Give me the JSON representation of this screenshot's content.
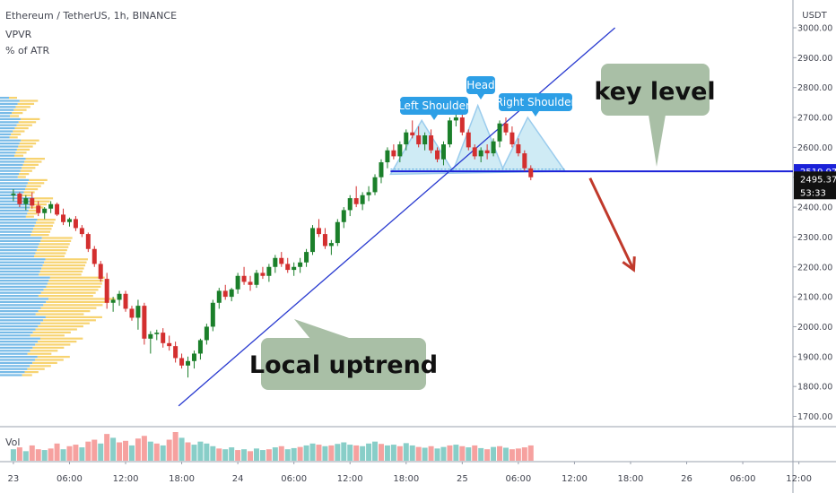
{
  "header": {
    "symbol": "Ethereum / TetherUS, 1h, BINANCE",
    "indicator_1": "VPVR",
    "indicator_2": "% of ATR"
  },
  "price_axis": {
    "currency": "USDT",
    "key_level_label": "2519.97",
    "last_price_label": "2495.37",
    "countdown_label": "53:33"
  },
  "volume_pane": {
    "label": "Vol"
  },
  "annotations": {
    "left_shoulder": "Left Shoulder",
    "head": "Head",
    "right_shoulder": "Right Shoulder",
    "key_level": "key level",
    "local_uptrend": "Local uptrend"
  },
  "colors": {
    "up": "#26a69a",
    "down": "#ef5350",
    "up_candle": "#1b7f2a",
    "down_candle": "#d32f2f",
    "key_level_line": "#1a21d8",
    "trendline": "#2a3bd0",
    "pattern_fill": "#a8dced",
    "pattern_stroke": "#4aa3df",
    "callout_green": "#a9bfa6",
    "callout_blue": "#2d9fe6",
    "arrow_red": "#c0392b",
    "vpvr_blue": "#4aa3df",
    "vpvr_yellow": "#f5c84c"
  },
  "chart_data": {
    "type": "candlestick",
    "ylim": [
      1660,
      3040
    ],
    "y_ticks": [
      1700,
      1800,
      1900,
      2000,
      2100,
      2200,
      2300,
      2400,
      2500,
      2600,
      2700,
      2800,
      2900,
      3000
    ],
    "y_tick_labels": [
      "1700.00",
      "1800.00",
      "1900.00",
      "2000.00",
      "2100.00",
      "2200.00",
      "2300.00",
      "2400.00",
      "2500.00",
      "2600.00",
      "2700.00",
      "2800.00",
      "2900.00",
      "3000.00"
    ],
    "x_tick_labels": [
      "23",
      "06:00",
      "12:00",
      "18:00",
      "24",
      "06:00",
      "12:00",
      "18:00",
      "25",
      "06:00",
      "12:00",
      "18:00",
      "26",
      "06:00",
      "12:00"
    ],
    "x_tick_bars": [
      0,
      9,
      18,
      27,
      36,
      45,
      54,
      63,
      72,
      81,
      90,
      99,
      108,
      117,
      126
    ],
    "key_level": 2519.97,
    "last_price": 2495.37,
    "head_and_shoulders": {
      "left_shoulder_peak": 2690,
      "head_peak": 2740,
      "right_shoulder_peak": 2700,
      "neckline": 2520
    },
    "trendline": {
      "from": [
        28,
        1735
      ],
      "to": [
        98,
        3000
      ]
    },
    "target_arrow": {
      "from": [
        94,
        2497
      ],
      "to": [
        101,
        2190
      ]
    },
    "candles": [
      [
        2440,
        2460,
        2420,
        2445
      ],
      [
        2445,
        2450,
        2400,
        2410
      ],
      [
        2410,
        2440,
        2390,
        2430
      ],
      [
        2430,
        2450,
        2395,
        2405
      ],
      [
        2405,
        2420,
        2370,
        2380
      ],
      [
        2380,
        2400,
        2360,
        2395
      ],
      [
        2395,
        2420,
        2380,
        2410
      ],
      [
        2410,
        2415,
        2370,
        2375
      ],
      [
        2375,
        2395,
        2340,
        2350
      ],
      [
        2350,
        2365,
        2335,
        2360
      ],
      [
        2360,
        2370,
        2320,
        2330
      ],
      [
        2330,
        2340,
        2300,
        2310
      ],
      [
        2310,
        2315,
        2250,
        2260
      ],
      [
        2260,
        2270,
        2200,
        2210
      ],
      [
        2210,
        2220,
        2150,
        2160
      ],
      [
        2160,
        2180,
        2060,
        2080
      ],
      [
        2080,
        2100,
        2050,
        2090
      ],
      [
        2090,
        2120,
        2070,
        2110
      ],
      [
        2110,
        2120,
        2050,
        2060
      ],
      [
        2060,
        2070,
        2020,
        2030
      ],
      [
        2030,
        2090,
        1990,
        2070
      ],
      [
        2070,
        2080,
        1940,
        1960
      ],
      [
        1960,
        1985,
        1910,
        1975
      ],
      [
        1975,
        1990,
        1955,
        1980
      ],
      [
        1980,
        1995,
        1930,
        1945
      ],
      [
        1945,
        1970,
        1920,
        1935
      ],
      [
        1935,
        1950,
        1880,
        1895
      ],
      [
        1895,
        1910,
        1860,
        1870
      ],
      [
        1870,
        1900,
        1830,
        1885
      ],
      [
        1885,
        1920,
        1860,
        1910
      ],
      [
        1910,
        1960,
        1890,
        1955
      ],
      [
        1955,
        2010,
        1940,
        2000
      ],
      [
        2000,
        2090,
        1985,
        2080
      ],
      [
        2080,
        2130,
        2060,
        2120
      ],
      [
        2120,
        2140,
        2090,
        2100
      ],
      [
        2100,
        2130,
        2085,
        2125
      ],
      [
        2125,
        2180,
        2110,
        2170
      ],
      [
        2170,
        2200,
        2140,
        2150
      ],
      [
        2150,
        2170,
        2120,
        2140
      ],
      [
        2140,
        2190,
        2130,
        2180
      ],
      [
        2180,
        2200,
        2160,
        2170
      ],
      [
        2170,
        2210,
        2150,
        2200
      ],
      [
        2200,
        2240,
        2180,
        2230
      ],
      [
        2230,
        2250,
        2200,
        2210
      ],
      [
        2210,
        2230,
        2180,
        2190
      ],
      [
        2190,
        2215,
        2170,
        2200
      ],
      [
        2200,
        2230,
        2180,
        2215
      ],
      [
        2215,
        2260,
        2200,
        2250
      ],
      [
        2250,
        2340,
        2240,
        2330
      ],
      [
        2330,
        2360,
        2300,
        2310
      ],
      [
        2310,
        2330,
        2260,
        2270
      ],
      [
        2270,
        2290,
        2240,
        2280
      ],
      [
        2280,
        2360,
        2270,
        2350
      ],
      [
        2350,
        2400,
        2330,
        2390
      ],
      [
        2390,
        2440,
        2370,
        2430
      ],
      [
        2430,
        2470,
        2400,
        2410
      ],
      [
        2410,
        2450,
        2390,
        2440
      ],
      [
        2440,
        2470,
        2420,
        2450
      ],
      [
        2450,
        2510,
        2440,
        2500
      ],
      [
        2500,
        2560,
        2480,
        2550
      ],
      [
        2550,
        2600,
        2530,
        2590
      ],
      [
        2590,
        2610,
        2560,
        2570
      ],
      [
        2570,
        2620,
        2550,
        2610
      ],
      [
        2610,
        2660,
        2590,
        2650
      ],
      [
        2650,
        2690,
        2630,
        2640
      ],
      [
        2640,
        2670,
        2600,
        2610
      ],
      [
        2610,
        2650,
        2590,
        2640
      ],
      [
        2640,
        2660,
        2580,
        2590
      ],
      [
        2590,
        2600,
        2550,
        2560
      ],
      [
        2560,
        2620,
        2540,
        2610
      ],
      [
        2610,
        2700,
        2600,
        2690
      ],
      [
        2690,
        2740,
        2670,
        2700
      ],
      [
        2700,
        2720,
        2640,
        2650
      ],
      [
        2650,
        2660,
        2590,
        2600
      ],
      [
        2600,
        2610,
        2560,
        2570
      ],
      [
        2570,
        2600,
        2550,
        2590
      ],
      [
        2590,
        2610,
        2560,
        2580
      ],
      [
        2580,
        2630,
        2570,
        2620
      ],
      [
        2620,
        2690,
        2600,
        2680
      ],
      [
        2680,
        2700,
        2640,
        2650
      ],
      [
        2650,
        2670,
        2600,
        2610
      ],
      [
        2610,
        2630,
        2570,
        2580
      ],
      [
        2580,
        2590,
        2520,
        2530
      ],
      [
        2530,
        2540,
        2490,
        2500
      ]
    ],
    "volume": [
      [
        "up",
        30
      ],
      [
        "down",
        35
      ],
      [
        "up",
        25
      ],
      [
        "down",
        40
      ],
      [
        "down",
        30
      ],
      [
        "up",
        28
      ],
      [
        "down",
        32
      ],
      [
        "down",
        45
      ],
      [
        "up",
        30
      ],
      [
        "down",
        38
      ],
      [
        "down",
        42
      ],
      [
        "up",
        35
      ],
      [
        "down",
        50
      ],
      [
        "down",
        55
      ],
      [
        "up",
        45
      ],
      [
        "down",
        70
      ],
      [
        "up",
        60
      ],
      [
        "down",
        48
      ],
      [
        "down",
        52
      ],
      [
        "up",
        40
      ],
      [
        "down",
        58
      ],
      [
        "down",
        65
      ],
      [
        "up",
        50
      ],
      [
        "down",
        45
      ],
      [
        "up",
        40
      ],
      [
        "down",
        55
      ],
      [
        "down",
        75
      ],
      [
        "up",
        60
      ],
      [
        "down",
        48
      ],
      [
        "up",
        42
      ],
      [
        "up",
        50
      ],
      [
        "up",
        45
      ],
      [
        "up",
        38
      ],
      [
        "down",
        32
      ],
      [
        "up",
        30
      ],
      [
        "up",
        35
      ],
      [
        "down",
        28
      ],
      [
        "up",
        30
      ],
      [
        "down",
        25
      ],
      [
        "up",
        32
      ],
      [
        "up",
        28
      ],
      [
        "down",
        30
      ],
      [
        "up",
        35
      ],
      [
        "down",
        38
      ],
      [
        "up",
        30
      ],
      [
        "up",
        33
      ],
      [
        "down",
        36
      ],
      [
        "up",
        40
      ],
      [
        "up",
        45
      ],
      [
        "down",
        42
      ],
      [
        "up",
        38
      ],
      [
        "down",
        40
      ],
      [
        "up",
        44
      ],
      [
        "up",
        48
      ],
      [
        "up",
        42
      ],
      [
        "down",
        40
      ],
      [
        "up",
        38
      ],
      [
        "up",
        45
      ],
      [
        "up",
        50
      ],
      [
        "down",
        44
      ],
      [
        "up",
        40
      ],
      [
        "up",
        42
      ],
      [
        "down",
        38
      ],
      [
        "up",
        46
      ],
      [
        "up",
        40
      ],
      [
        "down",
        36
      ],
      [
        "up",
        34
      ],
      [
        "down",
        38
      ],
      [
        "up",
        32
      ],
      [
        "up",
        36
      ],
      [
        "down",
        40
      ],
      [
        "up",
        42
      ],
      [
        "down",
        38
      ],
      [
        "up",
        35
      ],
      [
        "down",
        40
      ],
      [
        "up",
        33
      ],
      [
        "down",
        30
      ],
      [
        "up",
        36
      ],
      [
        "down",
        38
      ],
      [
        "up",
        34
      ],
      [
        "down",
        30
      ],
      [
        "down",
        32
      ],
      [
        "down",
        35
      ],
      [
        "down",
        40
      ]
    ]
  }
}
